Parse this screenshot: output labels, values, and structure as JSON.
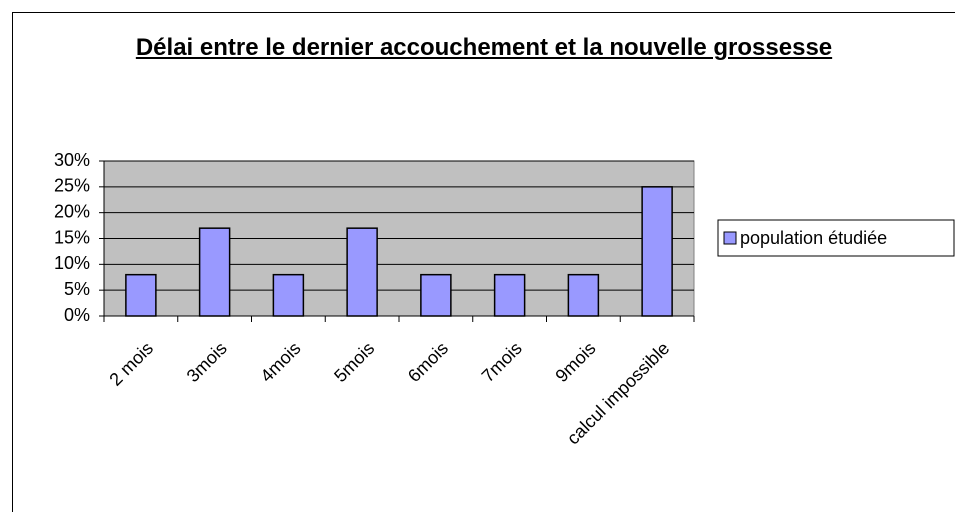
{
  "chart_data": {
    "type": "bar",
    "title": "Délai entre le dernier accouchement et la nouvelle grossesse",
    "categories": [
      "2 mois",
      "3mois",
      "4mois",
      "5mois",
      "6mois",
      "7mois",
      "9mois",
      "calcul impossible"
    ],
    "series": [
      {
        "name": "population étudiée",
        "color": "#9999ff",
        "values": [
          8,
          17,
          8,
          17,
          8,
          8,
          8,
          25
        ]
      }
    ],
    "ylim": [
      0,
      30
    ],
    "yticks": [
      {
        "value": 0,
        "label": "0%"
      },
      {
        "value": 5,
        "label": "5%"
      },
      {
        "value": 10,
        "label": "10%"
      },
      {
        "value": 15,
        "label": "15%"
      },
      {
        "value": 20,
        "label": "20%"
      },
      {
        "value": 25,
        "label": "25%"
      },
      {
        "value": 30,
        "label": "30%"
      }
    ],
    "grid": true,
    "legend": "right"
  }
}
